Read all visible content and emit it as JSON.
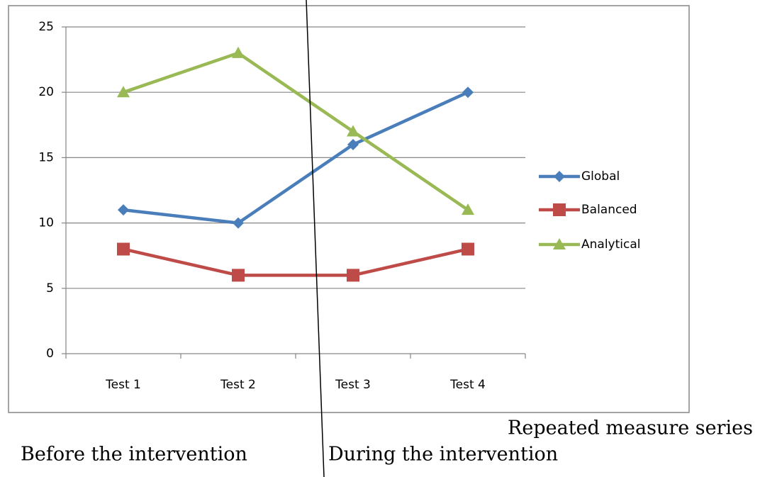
{
  "chart_data": {
    "type": "line",
    "categories": [
      "Test 1",
      "Test 2",
      "Test 3",
      "Test 4"
    ],
    "series": [
      {
        "name": "Global",
        "color": "#4a7ebb",
        "marker": "diamond",
        "values": [
          11,
          10,
          16,
          20
        ]
      },
      {
        "name": "Balanced",
        "color": "#be4b48",
        "marker": "square",
        "values": [
          8,
          6,
          6,
          8
        ]
      },
      {
        "name": "Analytical",
        "color": "#98b954",
        "marker": "triangle",
        "values": [
          20,
          23,
          17,
          11
        ]
      }
    ],
    "ylim": [
      0,
      25
    ],
    "yticks": [
      0,
      5,
      10,
      15,
      20,
      25
    ],
    "grid": true,
    "legend": "right",
    "annotations": [
      "Repeated measure series",
      "Before the intervention",
      "During the intervention"
    ]
  }
}
